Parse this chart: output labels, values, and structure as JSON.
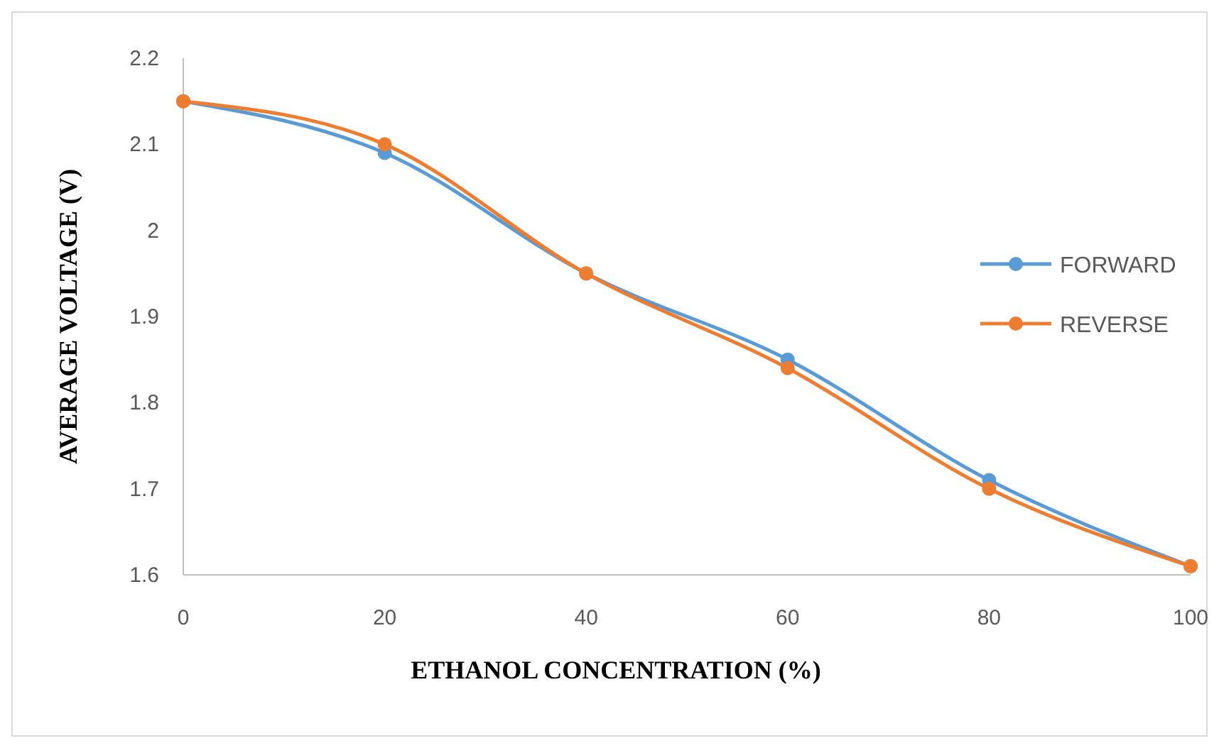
{
  "chart_data": {
    "type": "line",
    "xlabel": "ETHANOL CONCENTRATION  (%)",
    "ylabel": "AVERAGE VOLTAGE (V)",
    "x": [
      0,
      20,
      40,
      60,
      80,
      100
    ],
    "series": [
      {
        "name": "FORWARD",
        "color": "#5b9bd5",
        "values": [
          2.15,
          2.09,
          1.95,
          1.85,
          1.71,
          1.61
        ]
      },
      {
        "name": "REVERSE",
        "color": "#ed7d31",
        "values": [
          2.15,
          2.1,
          1.95,
          1.84,
          1.7,
          1.61
        ]
      }
    ],
    "xlim": [
      0,
      100
    ],
    "xticks": [
      0,
      20,
      40,
      60,
      80,
      100
    ],
    "ylim": [
      1.6,
      2.2
    ],
    "yticks": [
      1.6,
      1.7,
      1.8,
      1.9,
      2,
      2.1,
      2.2
    ],
    "grid": false,
    "legend": "right",
    "marker": "circle",
    "line_style": "solid"
  }
}
